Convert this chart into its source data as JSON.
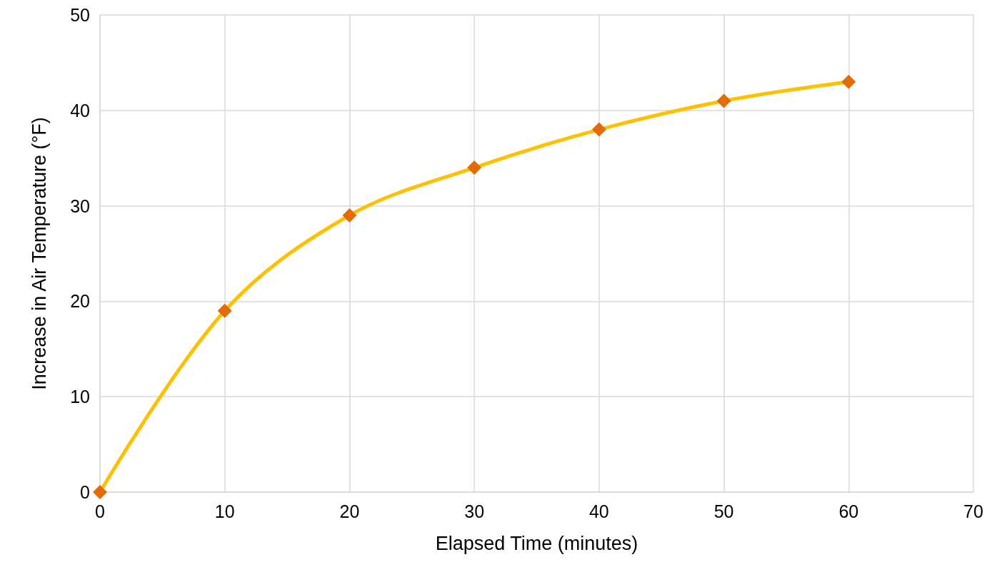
{
  "chart_data": {
    "type": "line",
    "xlabel": "Elapsed Time (minutes)",
    "ylabel": "Increase in Air Temperature (°F)",
    "x": [
      0,
      10,
      20,
      30,
      40,
      50,
      60
    ],
    "series": [
      {
        "color": "#ffc000",
        "colors": [
          "#e36c09",
          "#e36c09",
          "#e36c09",
          "#e36c09",
          "#e36c09",
          "#e36c09",
          "#e36c09"
        ],
        "values": [
          0,
          19,
          29,
          34,
          38,
          41,
          43
        ]
      }
    ],
    "xlim": [
      0,
      70
    ],
    "xticks": [
      0,
      10,
      20,
      30,
      40,
      50,
      60,
      70
    ],
    "ylim": [
      0,
      50
    ],
    "yticks": [
      0,
      10,
      20,
      30,
      40,
      50
    ],
    "grid": true,
    "marker": "diamond",
    "line_style": "solid"
  }
}
